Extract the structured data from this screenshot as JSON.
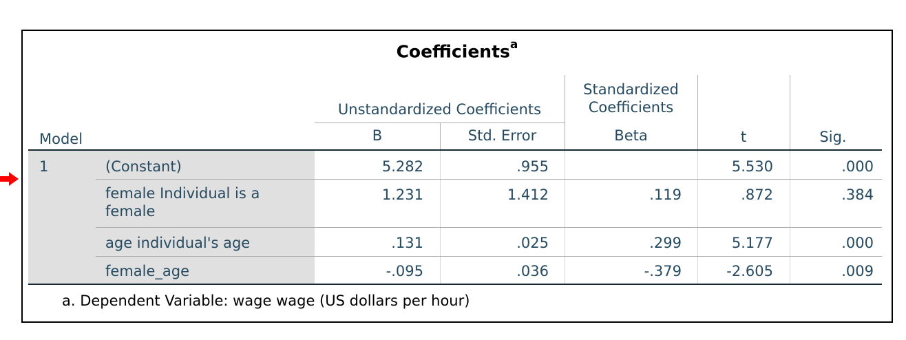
{
  "table": {
    "title": "Coefficients",
    "title_superscript": "a",
    "headers": {
      "model": "Model",
      "unstandardized": "Unstandardized Coefficients",
      "standardized_line1": "Standardized",
      "standardized_line2": "Coefficients",
      "b": "B",
      "std_error": "Std. Error",
      "beta": "Beta",
      "t": "t",
      "sig": "Sig."
    },
    "model_number": "1",
    "rows": [
      {
        "label": "(Constant)",
        "b": "5.282",
        "std_error": ".955",
        "beta": "",
        "t": "5.530",
        "sig": ".000"
      },
      {
        "label_line1": "female Individual is a",
        "label_line2": "female",
        "b": "1.231",
        "std_error": "1.412",
        "beta": ".119",
        "t": ".872",
        "sig": ".384"
      },
      {
        "label": "age individual's age",
        "b": ".131",
        "std_error": ".025",
        "beta": ".299",
        "t": "5.177",
        "sig": ".000"
      },
      {
        "label": "female_age",
        "b": "-.095",
        "std_error": ".036",
        "beta": "-.379",
        "t": "-2.605",
        "sig": ".009"
      }
    ],
    "footnote": "a. Dependent Variable: wage wage (US dollars per hour)"
  },
  "colors": {
    "text": "#264a60",
    "shade": "#e0e0e0",
    "arrow": "#ff0000",
    "grid": "#aeaeae",
    "rule": "#152935"
  }
}
